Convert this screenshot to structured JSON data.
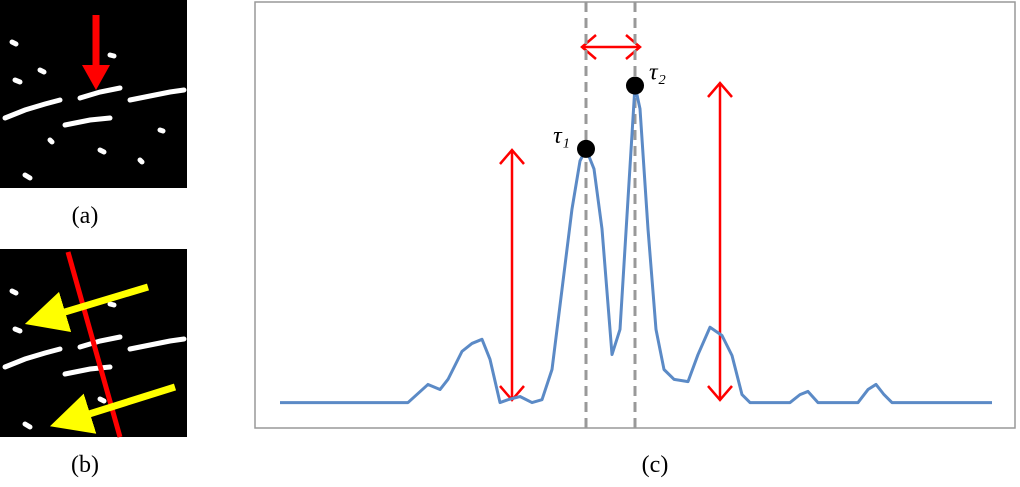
{
  "panels": {
    "a": {
      "label": "(a)"
    },
    "b": {
      "label": "(b)"
    },
    "c": {
      "label": "(c)"
    }
  },
  "chart_data": {
    "type": "line",
    "color": "#5b8ac6",
    "x": [
      0,
      128,
      148,
      160,
      168,
      182,
      192,
      202,
      210,
      220,
      228,
      240,
      252,
      262,
      272,
      282,
      292,
      300,
      306,
      314,
      322,
      332,
      340,
      348,
      355,
      360,
      368,
      376,
      384,
      394,
      408,
      418,
      430,
      442,
      452,
      462,
      470,
      510,
      520,
      528,
      538,
      578,
      588,
      596,
      604,
      612,
      712
    ],
    "values": [
      0,
      0,
      5.7,
      4.1,
      7.3,
      16.1,
      18.6,
      19.9,
      13.6,
      0,
      0.9,
      1.9,
      0,
      0.9,
      10.4,
      35.6,
      60.9,
      76.0,
      79.8,
      73.5,
      54.6,
      15.1,
      23.0,
      64.0,
      99.7,
      92.4,
      54.6,
      23.0,
      10.4,
      7.3,
      6.6,
      15.1,
      23.7,
      21.1,
      14.8,
      2.5,
      0,
      0,
      2.5,
      3.5,
      0,
      0,
      4.1,
      5.7,
      2.5,
      0,
      0
    ],
    "xlim": [
      -25,
      735
    ],
    "ylim": [
      -8,
      126
    ],
    "markers": [
      {
        "label": "τ₁",
        "x": 306,
        "y": 79.8
      },
      {
        "label": "τ₂",
        "x": 355,
        "y": 99.7
      }
    ]
  }
}
